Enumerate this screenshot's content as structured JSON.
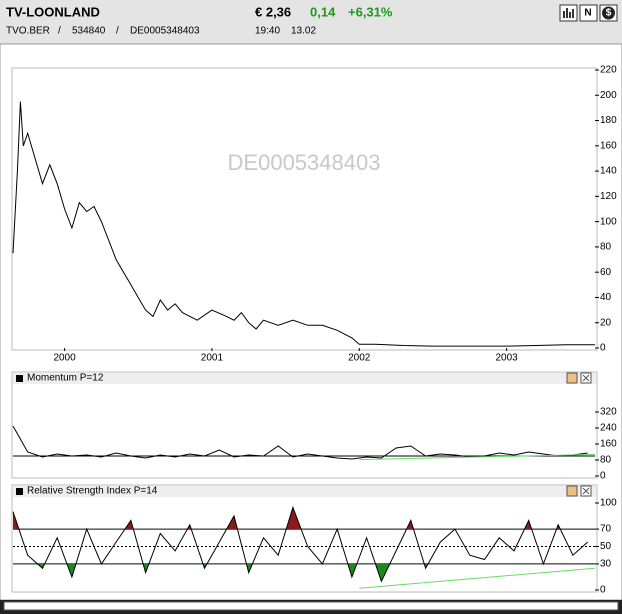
{
  "header": {
    "title": "TV-LOONLAND",
    "price": "€ 2,36",
    "change": "0,14",
    "change_percent": "+6,31%",
    "symbol": "TVO.BER",
    "wkn": "534840",
    "isin": "DE0005348403",
    "separator": "/",
    "time": "19:40",
    "date": "13.02",
    "icons": [
      "N",
      "$"
    ]
  },
  "chart_data": [
    {
      "type": "line",
      "watermark": "DE0005348403",
      "x": [
        1999.65,
        1999.68,
        1999.7,
        1999.72,
        1999.75,
        1999.8,
        1999.85,
        1999.9,
        1999.95,
        2000.0,
        2000.05,
        2000.1,
        2000.15,
        2000.2,
        2000.25,
        2000.3,
        2000.35,
        2000.4,
        2000.45,
        2000.5,
        2000.55,
        2000.6,
        2000.65,
        2000.7,
        2000.75,
        2000.8,
        2000.9,
        2001.0,
        2001.1,
        2001.15,
        2001.2,
        2001.25,
        2001.3,
        2001.35,
        2001.45,
        2001.55,
        2001.65,
        2001.75,
        2001.85,
        2001.95,
        2002.0,
        2002.1,
        2002.3,
        2002.5,
        2002.8,
        2003.0,
        2003.2,
        2003.4,
        2003.6
      ],
      "xlim": [
        1999.65,
        2003.6
      ],
      "xticks": [
        2000,
        2001,
        2002,
        2003
      ],
      "series": [
        {
          "color": "#000000",
          "values": [
            75,
            140,
            195,
            160,
            170,
            150,
            130,
            145,
            130,
            110,
            95,
            115,
            108,
            112,
            100,
            85,
            70,
            60,
            50,
            40,
            30,
            25,
            38,
            30,
            35,
            28,
            22,
            30,
            25,
            22,
            28,
            20,
            15,
            22,
            18,
            22,
            18,
            18,
            14,
            8,
            3,
            3,
            2,
            1.5,
            1.5,
            1.5,
            2,
            2.5,
            2.5
          ]
        }
      ],
      "ylim": [
        0,
        220
      ],
      "yticks": [
        0,
        20,
        40,
        60,
        80,
        100,
        120,
        140,
        160,
        180,
        200,
        220
      ]
    },
    {
      "type": "line",
      "x": [
        1999.65,
        1999.75,
        1999.85,
        1999.95,
        2000.05,
        2000.15,
        2000.25,
        2000.35,
        2000.45,
        2000.55,
        2000.65,
        2000.75,
        2000.85,
        2000.95,
        2001.05,
        2001.15,
        2001.25,
        2001.35,
        2001.45,
        2001.55,
        2001.65,
        2001.75,
        2001.85,
        2001.95,
        2002.05,
        2002.15,
        2002.25,
        2002.35,
        2002.45,
        2002.55,
        2002.65,
        2002.75,
        2002.85,
        2002.95,
        2003.05,
        2003.15,
        2003.25,
        2003.35,
        2003.45,
        2003.55
      ],
      "xlim": [
        1999.65,
        2003.6
      ],
      "series": [
        {
          "name": "Momentum P=12",
          "color": "#000000",
          "values": [
            250,
            120,
            95,
            110,
            100,
            105,
            95,
            115,
            100,
            90,
            105,
            95,
            110,
            100,
            130,
            95,
            105,
            100,
            150,
            95,
            110,
            100,
            90,
            85,
            95,
            90,
            140,
            150,
            100,
            110,
            105,
            95,
            100,
            115,
            105,
            120,
            110,
            100,
            105,
            115
          ]
        }
      ],
      "ylim": [
        0,
        320
      ],
      "yticks": [
        0,
        80,
        160,
        240,
        320
      ],
      "reference_lines": [
        100
      ],
      "trendline": {
        "color": "#66dd66",
        "x": [
          2002.0,
          2003.6
        ],
        "values": [
          82,
          108
        ]
      }
    },
    {
      "type": "line",
      "x": [
        1999.65,
        1999.75,
        1999.85,
        1999.95,
        2000.05,
        2000.15,
        2000.25,
        2000.35,
        2000.45,
        2000.55,
        2000.65,
        2000.75,
        2000.85,
        2000.95,
        2001.05,
        2001.15,
        2001.25,
        2001.35,
        2001.45,
        2001.55,
        2001.65,
        2001.75,
        2001.85,
        2001.95,
        2002.05,
        2002.15,
        2002.25,
        2002.35,
        2002.45,
        2002.55,
        2002.65,
        2002.75,
        2002.85,
        2002.95,
        2003.05,
        2003.15,
        2003.25,
        2003.35,
        2003.45,
        2003.55
      ],
      "xlim": [
        1999.65,
        2003.6
      ],
      "series": [
        {
          "name": "Relative Strength Index P=14",
          "color": "#000000",
          "values": [
            90,
            40,
            25,
            60,
            15,
            70,
            30,
            55,
            80,
            20,
            65,
            45,
            75,
            25,
            55,
            85,
            20,
            60,
            40,
            95,
            50,
            30,
            70,
            15,
            60,
            10,
            45,
            80,
            25,
            55,
            70,
            40,
            35,
            60,
            45,
            80,
            30,
            75,
            40,
            55
          ]
        }
      ],
      "ylim": [
        0,
        100
      ],
      "yticks": [
        0,
        30,
        50,
        70,
        100
      ],
      "reference_lines": [
        30,
        50,
        70
      ],
      "reference_styles": [
        "solid",
        "dashed",
        "solid"
      ],
      "overbought_color": "#8b1a1a",
      "oversold_color": "#1e8a1e",
      "trendline": {
        "color": "#66dd66",
        "x": [
          2002.0,
          2003.6
        ],
        "values": [
          2,
          25
        ]
      }
    }
  ]
}
